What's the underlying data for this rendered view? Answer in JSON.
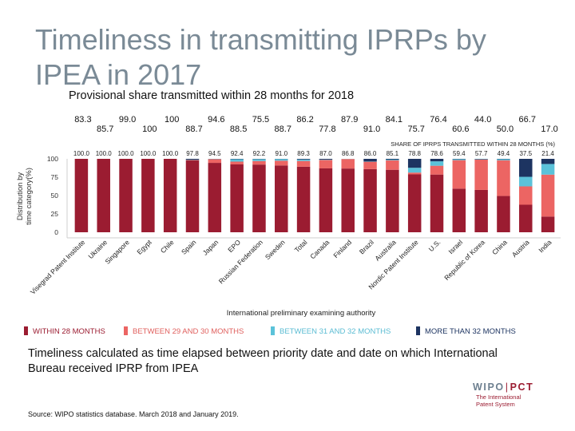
{
  "slide": {
    "title": "Timeliness in transmitting IPRPs by IPEA in 2017",
    "subtitle": "Provisional share transmitted within 28 months for 2018",
    "note": "Timeliness calculated as time elapsed between priority date and date on which International Bureau received IPRP from IPEA",
    "source": "Source: WIPO statistics database. March 2018 and January 2019.",
    "logo": {
      "left": "WIPO",
      "separator": "|",
      "right": "PCT",
      "tagline_1": "The International",
      "tagline_2": "Patent System"
    }
  },
  "chart_data": {
    "type": "bar",
    "stacked": true,
    "xlabel": "International preliminary examining authority",
    "ylabel_line1": "Distribution by",
    "ylabel_line2": "time category(%)",
    "ylim": [
      0,
      100
    ],
    "yticks": [
      0,
      25,
      50,
      75,
      100
    ],
    "grid": false,
    "legend_position": "bottom",
    "share_header": "SHARE OF IPRPS TRANSMITTED WITHIN 28 MONTHS (%)",
    "categories": [
      "Visegrad Patent Institute",
      "Ukraine",
      "Singapore",
      "Egypt",
      "Chile",
      "Spain",
      "Japan",
      "EPO",
      "Russian Federation",
      "Sweden",
      "Total",
      "Canada",
      "Finland",
      "Brazil",
      "Australia",
      "Nordic Patent Institute",
      "U.S.",
      "Israel",
      "Republic of Korea",
      "China",
      "Austria",
      "India"
    ],
    "share_labels": [
      "100.0",
      "100.0",
      "100.0",
      "100.0",
      "100.0",
      "97.8",
      "94.5",
      "92.4",
      "92.2",
      "91.0",
      "89.3",
      "87.0",
      "86.8",
      "86.0",
      "85.1",
      "78.8",
      "78.6",
      "59.4",
      "57.7",
      "49.4",
      "37.5",
      "21.4"
    ],
    "provisional_2018": [
      "83.3",
      "85.7",
      "99.0",
      "100",
      "100",
      "88.7",
      "94.6",
      "88.5",
      "75.5",
      "88.7",
      "86.2",
      "77.8",
      "87.9",
      "91.0",
      "84.1",
      "75.7",
      "76.4",
      "60.6",
      "44.0",
      "50.0",
      "66.7",
      "17.0"
    ],
    "series": [
      {
        "name": "WITHIN 28 MONTHS",
        "color": "#9b1c31",
        "values": [
          100,
          100,
          100,
          100,
          100,
          97.8,
          94.5,
          92.4,
          92.2,
          91.0,
          89.3,
          87.0,
          86.8,
          86.0,
          85.1,
          78.8,
          78.6,
          59.4,
          57.7,
          49.4,
          37.5,
          21.4
        ]
      },
      {
        "name": "BETWEEN 29 AND 30 MONTHS",
        "color": "#ec6563",
        "values": [
          0,
          0,
          0,
          0,
          0,
          0.6,
          5.0,
          3.8,
          4.8,
          6.5,
          7.8,
          11.5,
          13.0,
          10.0,
          12.8,
          2.5,
          12.0,
          38.8,
          41.3,
          48.6,
          25.0,
          57.1
        ]
      },
      {
        "name": "BETWEEN 31 AND 32 MONTHS",
        "color": "#5bc2d9",
        "values": [
          0,
          0,
          0,
          0,
          0,
          0.4,
          0.3,
          3.3,
          2.6,
          2.2,
          2.0,
          0.5,
          0.2,
          0.3,
          0.9,
          6.5,
          6.0,
          1.3,
          0.5,
          1.5,
          13.0,
          14.5
        ]
      },
      {
        "name": "MORE THAN 32 MONTHS",
        "color": "#1d3461",
        "values": [
          0,
          0,
          0,
          0,
          0,
          1.2,
          0.2,
          0.5,
          0.4,
          0.3,
          0.9,
          1.0,
          0,
          3.7,
          1.2,
          12.2,
          3.4,
          0.5,
          0.5,
          0.5,
          24.5,
          7.0
        ]
      }
    ],
    "legend_text_colors": [
      "#9b1c31",
      "#e0605e",
      "#5bbcd3",
      "#1d3461"
    ]
  }
}
